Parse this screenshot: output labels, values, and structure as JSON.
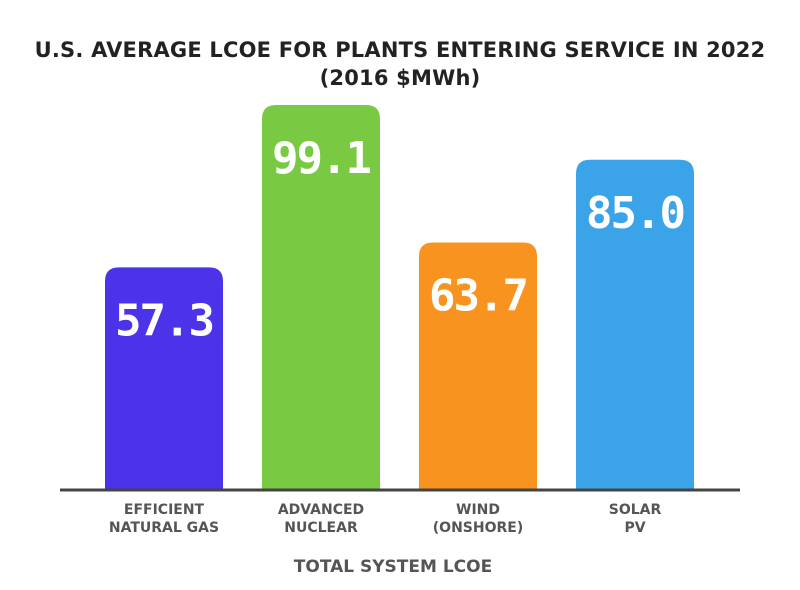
{
  "chart_data": {
    "type": "bar",
    "title": "U.S. AVERAGE LCOE FOR PLANTS ENTERING SERVICE IN 2022",
    "subtitle": "(2016 $MWh)",
    "xlabel": "TOTAL SYSTEM LCOE",
    "ylabel": "",
    "categories": [
      [
        "EFFICIENT",
        "NATURAL GAS"
      ],
      [
        "ADVANCED",
        "NUCLEAR"
      ],
      [
        "WIND",
        "(ONSHORE)"
      ],
      [
        "SOLAR",
        "PV"
      ]
    ],
    "values": [
      57.3,
      99.1,
      63.7,
      85.0
    ],
    "value_labels": [
      "57.3",
      "99.1",
      "63.7",
      "85.0"
    ],
    "colors": [
      "#4a33e8",
      "#7ac943",
      "#f7931e",
      "#3ba3e8"
    ],
    "ylim": [
      0,
      100
    ],
    "grid": false,
    "legend": "none"
  }
}
